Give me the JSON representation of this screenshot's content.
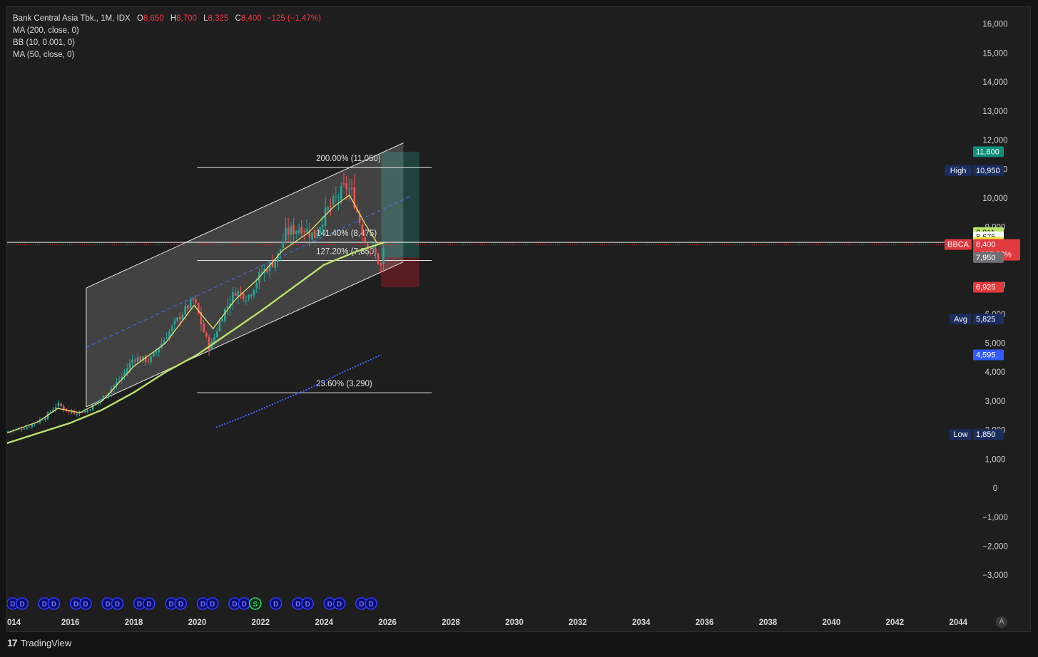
{
  "legend": {
    "symbol_name": "Bank Central Asia Tbk., 1M, IDX",
    "open_key": "O",
    "open": "8,650",
    "high_key": "H",
    "high": "8,700",
    "low_key": "L",
    "low": "8,325",
    "close_key": "C",
    "close": "8,400",
    "change": "−125 (−1.47%)",
    "indicators": [
      "MA (200, close, 0)",
      "BB (10, 0.001, 0)",
      "MA (50, close, 0)"
    ]
  },
  "footer": {
    "brand": "TradingView"
  },
  "auto_label": "A",
  "colors": {
    "bg": "#1e1e1e",
    "up": "#26a69a",
    "down": "#ef5350",
    "ma_yellow": "#e8e06a",
    "ma_green": "#b9e26a",
    "ma_blue": "#3d63ff",
    "channel": "#ffffff",
    "tp_zone": "#26a69a",
    "sl_zone": "#8b1c25"
  },
  "chart_data": {
    "type": "candlestick",
    "title": "Bank Central Asia Tbk., 1M, IDX",
    "x_axis": {
      "min": 2014.0,
      "max": 2045.0,
      "ticks": [
        "014",
        "2016",
        "2018",
        "2020",
        "2022",
        "2024",
        "2026",
        "2028",
        "2030",
        "2032",
        "2034",
        "2036",
        "2038",
        "2040",
        "2042",
        "2044"
      ],
      "tick_values": [
        2014,
        2016,
        2018,
        2020,
        2022,
        2024,
        2026,
        2028,
        2030,
        2032,
        2034,
        2036,
        2038,
        2040,
        2042,
        2044
      ]
    },
    "y_axis": {
      "min": -3800,
      "max": 16500,
      "ticks": [
        "16,000",
        "15,000",
        "14,000",
        "13,000",
        "12,000",
        "11,000",
        "10,000",
        "9,000",
        "8,000",
        "7,000",
        "6,000",
        "5,000",
        "4,000",
        "3,000",
        "2,000",
        "1,000",
        "0",
        "−1,000",
        "−2,000",
        "−3,000"
      ],
      "tick_values": [
        16000,
        15000,
        14000,
        13000,
        12000,
        11000,
        10000,
        9000,
        8000,
        7000,
        6000,
        5000,
        4000,
        3000,
        2000,
        1000,
        0,
        -1000,
        -2000,
        -3000
      ]
    },
    "price_anchors": [
      [
        2014.0,
        1950
      ],
      [
        2014.6,
        2100
      ],
      [
        2015.2,
        2450
      ],
      [
        2015.6,
        2900
      ],
      [
        2016.0,
        2600
      ],
      [
        2016.5,
        2650
      ],
      [
        2017.0,
        3100
      ],
      [
        2017.6,
        3800
      ],
      [
        2018.0,
        4500
      ],
      [
        2018.5,
        4400
      ],
      [
        2019.0,
        5200
      ],
      [
        2019.5,
        6000
      ],
      [
        2019.9,
        6500
      ],
      [
        2020.2,
        5400
      ],
      [
        2020.4,
        4800
      ],
      [
        2020.8,
        6000
      ],
      [
        2021.2,
        6800
      ],
      [
        2021.6,
        6600
      ],
      [
        2022.0,
        7400
      ],
      [
        2022.5,
        7900
      ],
      [
        2022.8,
        8800
      ],
      [
        2023.3,
        9000
      ],
      [
        2023.7,
        8700
      ],
      [
        2024.0,
        9400
      ],
      [
        2024.4,
        10000
      ],
      [
        2024.7,
        10400
      ],
      [
        2024.9,
        10100
      ],
      [
        2025.1,
        9300
      ],
      [
        2025.3,
        8500
      ],
      [
        2025.6,
        8100
      ],
      [
        2025.8,
        7600
      ],
      [
        2025.9,
        8400
      ]
    ],
    "ma_200": [
      [
        2020.6,
        2100
      ],
      [
        2021.5,
        2480
      ],
      [
        2022.5,
        2950
      ],
      [
        2023.5,
        3420
      ],
      [
        2024.5,
        3950
      ],
      [
        2025.8,
        4595
      ]
    ],
    "ma_50": [
      [
        2014.0,
        1550
      ],
      [
        2015.0,
        1900
      ],
      [
        2016.0,
        2250
      ],
      [
        2017.0,
        2700
      ],
      [
        2018.0,
        3300
      ],
      [
        2019.0,
        4000
      ],
      [
        2020.0,
        4600
      ],
      [
        2021.0,
        5350
      ],
      [
        2022.0,
        6100
      ],
      [
        2023.0,
        6900
      ],
      [
        2024.0,
        7700
      ],
      [
        2025.0,
        8150
      ],
      [
        2025.9,
        8472
      ]
    ],
    "ma_yellow": [
      [
        2014.0,
        1900
      ],
      [
        2015.0,
        2300
      ],
      [
        2015.6,
        2750
      ],
      [
        2016.3,
        2600
      ],
      [
        2017.0,
        3000
      ],
      [
        2018.0,
        4200
      ],
      [
        2019.0,
        5000
      ],
      [
        2019.9,
        6300
      ],
      [
        2020.5,
        5500
      ],
      [
        2021.2,
        6500
      ],
      [
        2021.9,
        7200
      ],
      [
        2022.7,
        8200
      ],
      [
        2023.5,
        8800
      ],
      [
        2024.3,
        9700
      ],
      [
        2024.8,
        10100
      ],
      [
        2025.3,
        9100
      ],
      [
        2025.7,
        8400
      ],
      [
        2025.9,
        8473
      ]
    ],
    "channel": {
      "x_start": 2016.5,
      "x_end": 2026.5,
      "upper": [
        6900,
        11900
      ],
      "lower": [
        2800,
        7800
      ],
      "mid": [
        4850,
        9850
      ]
    },
    "fib_levels": [
      {
        "label": "200.00% (11,050)",
        "price": 11050,
        "x_start": 2020.0,
        "x_end": 2027.4
      },
      {
        "label": "141.40% (8,475)",
        "price": 8475,
        "x_start": 2020.0,
        "x_end": 2027.4
      },
      {
        "label": "127.20% (7,850)",
        "price": 7850,
        "x_start": 2020.0,
        "x_end": 2027.4
      },
      {
        "label": "23.60% (3,290)",
        "price": 3290,
        "x_start": 2020.0,
        "x_end": 2027.4
      }
    ],
    "position": {
      "x_start": 2025.8,
      "x_end": 2027.0,
      "entry": 7950,
      "target": 11600,
      "stop": 6925
    },
    "horizontal_line": 8473,
    "price_line": 8400,
    "price_labels": [
      {
        "prefix": "",
        "value": "11,600",
        "price": 11600,
        "color": "#0d8f7a",
        "text_color": "#ffffff"
      },
      {
        "prefix": "High",
        "value": "10,950",
        "price": 10950,
        "color": "#1b2c5e",
        "text_color": "#ffffff"
      },
      {
        "prefix": "",
        "value": "8,811",
        "price": 8811,
        "color": "#b9e26a",
        "text_color": "#111111"
      },
      {
        "prefix": "",
        "value": "8,675",
        "price": 8675,
        "color": "#ffffff",
        "text_color": "#111111"
      },
      {
        "prefix": "",
        "value": "8,473",
        "price": 8473,
        "color": "#fff2a8",
        "text_color": "#111111"
      },
      {
        "prefix": "",
        "value": "8,473",
        "price": 8473,
        "color": "#fff2a8",
        "text_color": "#111111"
      },
      {
        "prefix": "",
        "value": "8,472",
        "price": 8472,
        "color": "#f5e342",
        "text_color": "#111111"
      },
      {
        "prefix": "BBCA",
        "value": "8,400",
        "sub": "+335.23%",
        "price": 8400,
        "color": "#e0393e",
        "text_color": "#ffffff"
      },
      {
        "prefix": "",
        "value": "7,950",
        "price": 7950,
        "color": "#6e6e73",
        "text_color": "#ffffff"
      },
      {
        "prefix": "",
        "value": "6,925",
        "price": 6925,
        "color": "#e0393e",
        "text_color": "#ffffff"
      },
      {
        "prefix": "Avg",
        "value": "5,825",
        "price": 5825,
        "color": "#1b2c5e",
        "text_color": "#ffffff"
      },
      {
        "prefix": "",
        "value": "4,595",
        "price": 4595,
        "color": "#2f5bff",
        "text_color": "#ffffff"
      },
      {
        "prefix": "Low",
        "value": "1,850",
        "price": 1850,
        "color": "#1b2c5e",
        "text_color": "#ffffff"
      }
    ],
    "event_markers": [
      2014.0,
      2014.3,
      2015.0,
      2015.3,
      2016.0,
      2016.3,
      2017.0,
      2017.3,
      2018.0,
      2018.3,
      2019.0,
      2019.3,
      2020.0,
      2020.3,
      2021.0,
      2021.3,
      2021.65,
      2022.3,
      2023.0,
      2023.3,
      2024.0,
      2024.3,
      2025.0,
      2025.3
    ],
    "event_marker_special": {
      "x": 2021.65,
      "label": "S"
    }
  }
}
